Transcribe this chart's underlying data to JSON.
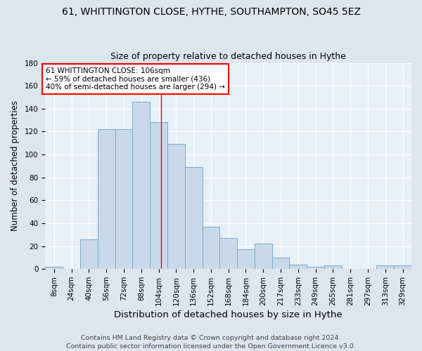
{
  "title": "61, WHITTINGTON CLOSE, HYTHE, SOUTHAMPTON, SO45 5EZ",
  "subtitle": "Size of property relative to detached houses in Hythe",
  "xlabel": "Distribution of detached houses by size in Hythe",
  "ylabel": "Number of detached properties",
  "categories": [
    "8sqm",
    "24sqm",
    "40sqm",
    "56sqm",
    "72sqm",
    "88sqm",
    "104sqm",
    "120sqm",
    "136sqm",
    "152sqm",
    "168sqm",
    "184sqm",
    "200sqm",
    "217sqm",
    "233sqm",
    "249sqm",
    "265sqm",
    "281sqm",
    "297sqm",
    "313sqm",
    "329sqm"
  ],
  "values": [
    2,
    0,
    26,
    122,
    122,
    146,
    128,
    109,
    89,
    37,
    27,
    17,
    22,
    10,
    4,
    2,
    3,
    0,
    0,
    3,
    3
  ],
  "bar_color": "#c9d9ea",
  "bar_edge_color": "#7aaac8",
  "vline_position": 106,
  "vline_color": "red",
  "annotation_box_color": "white",
  "annotation_box_edge_color": "red",
  "property_label": "61 WHITTINGTON CLOSE: 106sqm",
  "annotation_line1": "← 59% of detached houses are smaller (436)",
  "annotation_line2": "40% of semi-detached houses are larger (294) →",
  "ylim": [
    0,
    180
  ],
  "yticks": [
    0,
    20,
    40,
    60,
    80,
    100,
    120,
    140,
    160,
    180
  ],
  "background_color": "#dde6ef",
  "plot_background_color": "#e8f0f7",
  "grid_color": "white",
  "title_fontsize": 10,
  "subtitle_fontsize": 9,
  "xlabel_fontsize": 9.5,
  "ylabel_fontsize": 8.5,
  "tick_fontsize": 7.5,
  "annot_fontsize": 7.5,
  "footer_fontsize": 6.8,
  "footer_line1": "Contains HM Land Registry data © Crown copyright and database right 2024.",
  "footer_line2": "Contains public sector information licensed under the Open Government Licence v3.0."
}
